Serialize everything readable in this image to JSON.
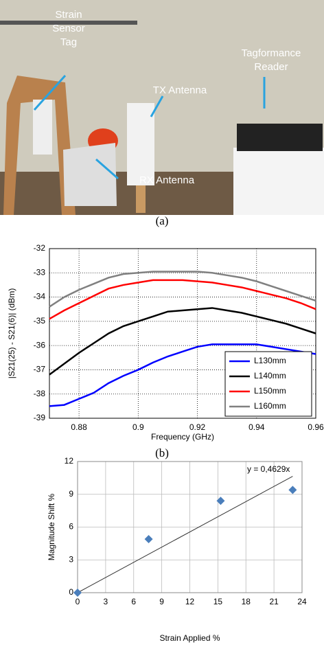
{
  "photo": {
    "labels": [
      {
        "lines": [
          "Strain",
          "Sensor",
          "Tag"
        ]
      },
      {
        "lines": [
          "TX Antenna"
        ]
      },
      {
        "lines": [
          "Tagformance",
          "Reader"
        ]
      },
      {
        "lines": [
          "RX Antenna"
        ]
      }
    ],
    "caption": "(a)"
  },
  "caption_b": "(b)",
  "chart_data": [
    {
      "type": "line",
      "x_label": "Frequency (GHz)",
      "y_label": "|S21(25) - S21(6)| (dBm)",
      "x": [
        0.87,
        0.875,
        0.88,
        0.885,
        0.89,
        0.895,
        0.9,
        0.905,
        0.91,
        0.915,
        0.92,
        0.925,
        0.93,
        0.935,
        0.94,
        0.945,
        0.95,
        0.955,
        0.96
      ],
      "series": [
        {
          "name": "L130mm",
          "color": "#0000ff",
          "values": [
            -38.5,
            -38.45,
            -38.2,
            -37.95,
            -37.55,
            -37.25,
            -37.0,
            -36.7,
            -36.45,
            -36.25,
            -36.05,
            -35.95,
            -35.95,
            -35.95,
            -35.95,
            -36.05,
            -36.15,
            -36.25,
            -36.35
          ]
        },
        {
          "name": "L140mm",
          "color": "#000000",
          "values": [
            -37.2,
            -36.75,
            -36.3,
            -35.9,
            -35.5,
            -35.2,
            -35.0,
            -34.8,
            -34.6,
            -34.55,
            -34.5,
            -34.45,
            -34.55,
            -34.65,
            -34.8,
            -34.95,
            -35.1,
            -35.3,
            -35.5
          ]
        },
        {
          "name": "L150mm",
          "color": "#ff0000",
          "values": [
            -34.9,
            -34.55,
            -34.25,
            -33.95,
            -33.65,
            -33.5,
            -33.4,
            -33.3,
            -33.3,
            -33.3,
            -33.35,
            -33.4,
            -33.5,
            -33.6,
            -33.75,
            -33.9,
            -34.05,
            -34.25,
            -34.5
          ]
        },
        {
          "name": "L160mm",
          "color": "#808080",
          "values": [
            -34.4,
            -34.0,
            -33.7,
            -33.45,
            -33.2,
            -33.05,
            -33.0,
            -32.95,
            -32.95,
            -32.95,
            -32.95,
            -33.0,
            -33.1,
            -33.2,
            -33.35,
            -33.55,
            -33.75,
            -33.95,
            -34.15
          ]
        }
      ],
      "xlim": [
        0.87,
        0.96
      ],
      "xticks": [
        0.88,
        0.9,
        0.92,
        0.94,
        0.96
      ],
      "ylim": [
        -39,
        -32
      ],
      "yticks": [
        -39,
        -38,
        -37,
        -36,
        -35,
        -34,
        -33,
        -32
      ],
      "grid": true,
      "legend": "lower-right"
    },
    {
      "type": "scatter",
      "x_label": "Strain Applied %",
      "y_label": "Magnitude Shift %",
      "x": [
        0,
        7.6,
        15.3,
        23
      ],
      "values": [
        0,
        4.9,
        8.4,
        9.4
      ],
      "color": "#4a7ebb",
      "trendline": {
        "label": "y = 0,4629x",
        "slope": 0.4629
      },
      "xlim": [
        0,
        24
      ],
      "xticks": [
        0,
        3,
        6,
        9,
        12,
        15,
        18,
        21,
        24
      ],
      "ylim": [
        0,
        12
      ],
      "yticks": [
        0,
        3,
        6,
        9,
        12
      ],
      "grid": true
    }
  ]
}
